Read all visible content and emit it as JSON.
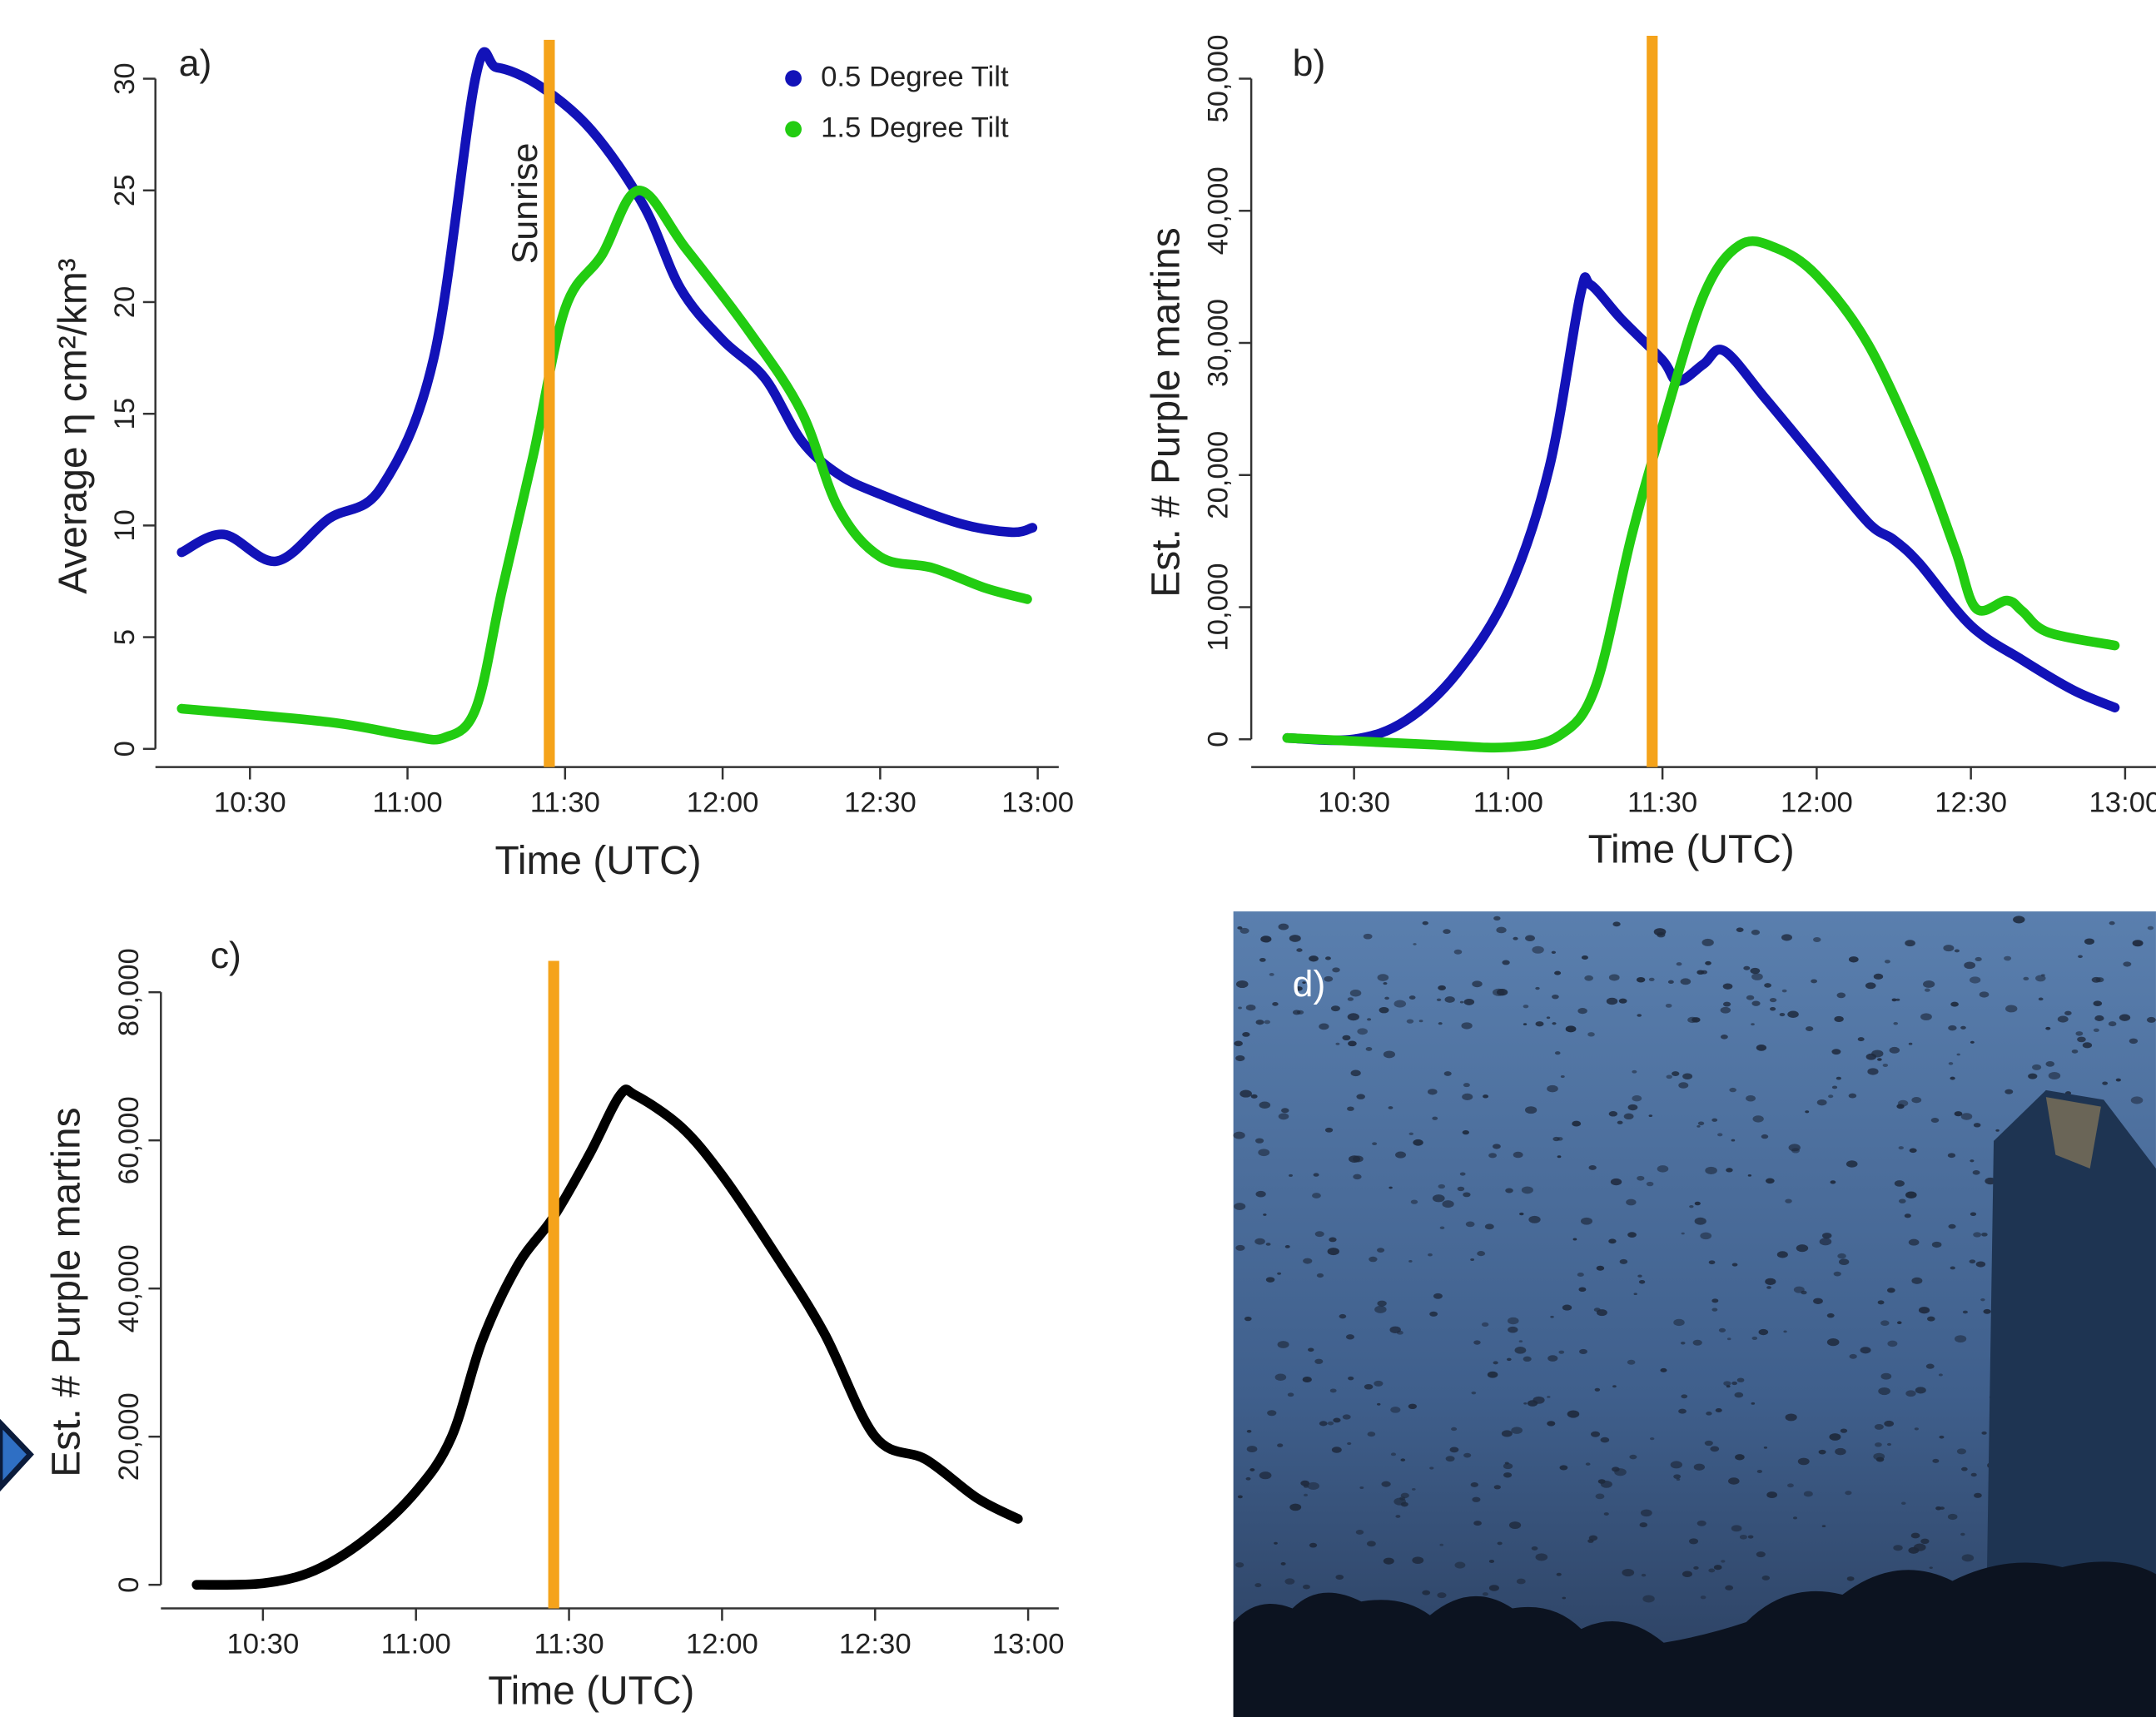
{
  "chart_data": [
    {
      "type": "line",
      "panel_label": "a)",
      "ylabel": "Average η cm²/km³",
      "xlabel": "Time (UTC)",
      "xlim": [
        612,
        784
      ],
      "ylim": [
        -1,
        31
      ],
      "xticks": [
        {
          "value": 630,
          "label": "10:30"
        },
        {
          "value": 660,
          "label": "11:00"
        },
        {
          "value": 690,
          "label": "11:30"
        },
        {
          "value": 720,
          "label": "12:00"
        },
        {
          "value": 750,
          "label": "12:30"
        },
        {
          "value": 780,
          "label": "13:00"
        }
      ],
      "yticks": [
        0,
        5,
        10,
        15,
        20,
        25,
        30
      ],
      "vline": {
        "x": 687,
        "color": "#f5a31a",
        "label": "Sunrise"
      },
      "legend": "top-right",
      "series": [
        {
          "name": "0.5 Degree Tilt",
          "color": "#1212b8",
          "x": [
            617,
            625,
            635,
            645,
            655,
            665,
            673,
            677,
            685,
            695,
            705,
            712,
            720,
            728,
            735,
            742,
            750,
            765,
            775,
            779
          ],
          "values": [
            8.8,
            9.6,
            8.4,
            10.3,
            11.7,
            17.5,
            30.1,
            30.5,
            29.7,
            27.7,
            24.3,
            20.6,
            18.3,
            16.6,
            13.8,
            12.3,
            11.4,
            10.1,
            9.7,
            9.9
          ]
        },
        {
          "name": "1.5 Degree Tilt",
          "color": "#22cc11",
          "x": [
            617,
            645,
            660,
            667,
            673,
            678,
            684,
            690,
            697,
            704,
            713,
            725,
            735,
            742,
            750,
            760,
            770,
            778
          ],
          "values": [
            1.8,
            1.2,
            0.6,
            0.5,
            1.8,
            7.1,
            13.2,
            19.7,
            22.1,
            25.0,
            22.4,
            18.7,
            15.1,
            10.8,
            8.6,
            8.1,
            7.2,
            6.7
          ]
        }
      ]
    },
    {
      "type": "line",
      "panel_label": "b)",
      "ylabel": "Est. # Purple martins",
      "xlabel": "Time (UTC)",
      "xlim": [
        610,
        786
      ],
      "ylim": [
        -2000,
        52000
      ],
      "xticks": [
        {
          "value": 630,
          "label": "10:30"
        },
        {
          "value": 660,
          "label": "11:00"
        },
        {
          "value": 690,
          "label": "11:30"
        },
        {
          "value": 720,
          "label": "12:00"
        },
        {
          "value": 750,
          "label": "12:30"
        },
        {
          "value": 780,
          "label": "13:00"
        }
      ],
      "yticks": [
        0,
        {
          "value": 10000,
          "label": "10,000"
        },
        {
          "value": 20000,
          "label": "20,000"
        },
        {
          "value": 30000,
          "label": "30,000"
        },
        {
          "value": 40000,
          "label": "40,000"
        },
        {
          "value": 50000,
          "label": "50,000"
        }
      ],
      "vline": {
        "x": 688,
        "color": "#f5a31a"
      },
      "series": [
        {
          "color": "#1212b8",
          "x": [
            617,
            630,
            640,
            650,
            660,
            668,
            674,
            676,
            682,
            690,
            693,
            698,
            702,
            710,
            720,
            730,
            735,
            740,
            750,
            760,
            770,
            778
          ],
          "values": [
            100,
            0,
            1400,
            5000,
            11200,
            20600,
            33600,
            34400,
            31800,
            28700,
            27100,
            28400,
            29400,
            25800,
            21100,
            16400,
            15100,
            13300,
            8600,
            6000,
            3700,
            2400
          ]
        },
        {
          "color": "#22cc11",
          "x": [
            617,
            645,
            660,
            670,
            677,
            684,
            690,
            698,
            705,
            712,
            720,
            730,
            740,
            747,
            751,
            757,
            760,
            765,
            778
          ],
          "values": [
            100,
            -400,
            -600,
            300,
            4000,
            15400,
            23700,
            33600,
            37400,
            37200,
            35100,
            29900,
            21600,
            14300,
            9900,
            10500,
            9700,
            8100,
            7100
          ]
        }
      ]
    },
    {
      "type": "line",
      "panel_label": "c)",
      "ylabel": "Est. # Purple martins",
      "xlabel": "Time (UTC)",
      "xlim": [
        610,
        786
      ],
      "ylim": [
        -3000,
        82000
      ],
      "xticks": [
        {
          "value": 630,
          "label": "10:30"
        },
        {
          "value": 660,
          "label": "11:00"
        },
        {
          "value": 690,
          "label": "11:30"
        },
        {
          "value": 720,
          "label": "12:00"
        },
        {
          "value": 750,
          "label": "12:30"
        },
        {
          "value": 780,
          "label": "13:00"
        }
      ],
      "yticks": [
        0,
        {
          "value": 20000,
          "label": "20,000"
        },
        {
          "value": 40000,
          "label": "40,000"
        },
        {
          "value": 60000,
          "label": "60,000"
        },
        {
          "value": 80000,
          "label": "80,000"
        }
      ],
      "vline": {
        "x": 687,
        "color": "#f5a31a"
      },
      "series": [
        {
          "color": "#000000",
          "x": [
            617,
            630,
            640,
            650,
            660,
            667,
            673,
            680,
            687,
            694,
            700,
            703,
            712,
            720,
            730,
            740,
            750,
            760,
            770,
            778
          ],
          "values": [
            0,
            200,
            1900,
            6100,
            12600,
            20000,
            33000,
            43200,
            49700,
            58100,
            66100,
            66100,
            61800,
            55300,
            45100,
            34000,
            20000,
            16900,
            11700,
            8900
          ]
        }
      ]
    }
  ],
  "photo": {
    "label": "d)"
  }
}
